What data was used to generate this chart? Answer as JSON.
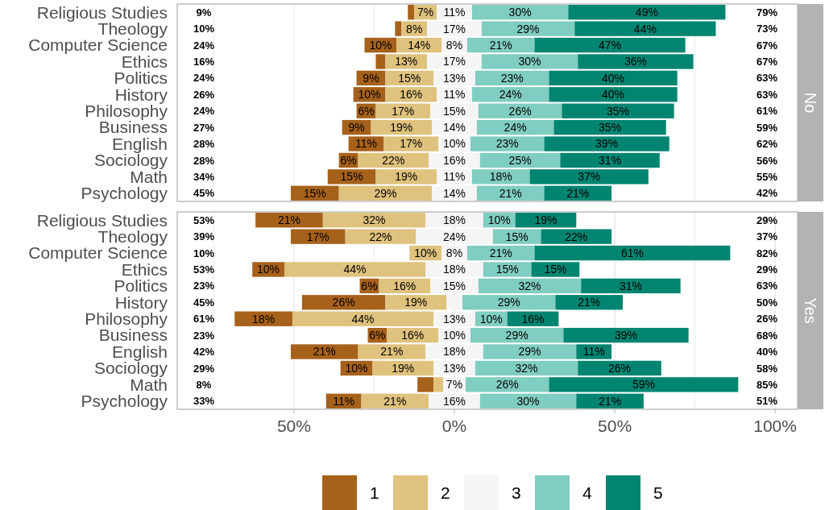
{
  "chart_data": [
    {
      "type": "bar",
      "title": "No",
      "orientation": "horizontal",
      "grid": "x",
      "legend": false,
      "tick_labels": "y",
      "categories": [
        "Religious Studies",
        "Theology",
        "Computer Science",
        "Ethics",
        "Politics",
        "History",
        "Philosophy",
        "Business",
        "English",
        "Sociology",
        "Math",
        "Psychology"
      ],
      "xlim": [
        -86.4,
        107
      ],
      "xticks": [
        {
          "value": -75,
          "label": null
        },
        {
          "value": -50,
          "label": null
        },
        {
          "value": -25,
          "label": null
        },
        {
          "value": 0,
          "label": null
        },
        {
          "value": 25,
          "label": null
        },
        {
          "value": 50,
          "label": null
        },
        {
          "value": 75,
          "label": null
        },
        {
          "value": 100,
          "label": null
        }
      ],
      "series": [
        {
          "color": "#a6611a",
          "values": [
            2,
            2,
            10,
            3,
            9,
            10,
            6,
            9,
            11,
            6,
            15,
            15
          ],
          "base": [
            -14.5,
            -18.5,
            -28,
            -24.5,
            -30.5,
            -31.5,
            -30.5,
            -35,
            -33,
            -36,
            -39.5,
            -51
          ],
          "value_labels": [
            null,
            null,
            "10%",
            null,
            "9%",
            "10%",
            "6%",
            "9%",
            "11%",
            "6%",
            "15%",
            "15%"
          ]
        },
        {
          "color": "#dfc27d",
          "values": [
            7,
            8,
            14,
            13,
            15,
            16,
            17,
            19,
            17,
            22,
            19,
            29
          ],
          "base": [
            -12.5,
            -16.5,
            -18,
            -21.5,
            -21.5,
            -21.5,
            -24.5,
            -26,
            -22,
            -30,
            -24.5,
            -36
          ],
          "value_labels": [
            "7%",
            "8%",
            "14%",
            "13%",
            "15%",
            "16%",
            "17%",
            "19%",
            "17%",
            "22%",
            "19%",
            "29%"
          ]
        },
        {
          "color": "#f5f5f5",
          "values": [
            11,
            17,
            8,
            17,
            13,
            11,
            15,
            14,
            10,
            16,
            11,
            14
          ],
          "base": [
            -5.5,
            -8.5,
            -4,
            -8.5,
            -6.5,
            -5.5,
            -7.5,
            -7,
            -5,
            -8,
            -5.5,
            -7
          ],
          "value_labels": [
            "11%",
            "17%",
            "8%",
            "17%",
            "13%",
            "11%",
            "15%",
            "14%",
            "10%",
            "16%",
            "11%",
            "14%"
          ]
        },
        {
          "color": "#80cdc1",
          "values": [
            30,
            29,
            21,
            30,
            23,
            24,
            26,
            24,
            23,
            25,
            18,
            21
          ],
          "base": [
            5.5,
            8.5,
            4,
            8.5,
            6.5,
            5.5,
            7.5,
            7,
            5,
            8,
            5.5,
            7
          ],
          "value_labels": [
            "30%",
            "29%",
            "21%",
            "30%",
            "23%",
            "24%",
            "26%",
            "24%",
            "23%",
            "25%",
            "18%",
            "21%"
          ]
        },
        {
          "color": "#018571",
          "values": [
            49,
            44,
            47,
            36,
            40,
            40,
            35,
            35,
            39,
            31,
            37,
            21
          ],
          "base": [
            35.5,
            37.5,
            25,
            38.5,
            29.5,
            29.5,
            33.5,
            31,
            28,
            33,
            23.5,
            28
          ],
          "value_labels": [
            "49%",
            "44%",
            "47%",
            "36%",
            "40%",
            "40%",
            "35%",
            "35%",
            "39%",
            "31%",
            "37%",
            "21%"
          ]
        }
      ],
      "annotations": [
        "9%",
        "10%",
        "24%",
        "16%",
        "24%",
        "26%",
        "24%",
        "27%",
        "28%",
        "28%",
        "34%",
        "45%",
        "79%",
        "73%",
        "67%",
        "67%",
        "63%",
        "63%",
        "61%",
        "59%",
        "62%",
        "56%",
        "55%",
        "42%"
      ]
    },
    {
      "type": "bar",
      "title": "Yes",
      "orientation": "horizontal",
      "grid": "x",
      "legend": "bottom",
      "categories": [
        "Religious Studies",
        "Theology",
        "Computer Science",
        "Ethics",
        "Politics",
        "History",
        "Philosophy",
        "Business",
        "English",
        "Sociology",
        "Math",
        "Psychology"
      ],
      "xlim": [
        -86.4,
        107
      ],
      "xticks": [
        {
          "value": -75,
          "label": null
        },
        {
          "value": -50,
          "label": "50%"
        },
        {
          "value": -25,
          "label": null
        },
        {
          "value": 0,
          "label": "0%"
        },
        {
          "value": 25,
          "label": null
        },
        {
          "value": 50,
          "label": "50%"
        },
        {
          "value": 75,
          "label": null
        },
        {
          "value": 100,
          "label": "100%"
        }
      ],
      "series": [
        {
          "name": "1",
          "color": "#a6611a",
          "values": [
            21,
            17,
            null,
            10,
            6,
            26,
            18,
            6,
            21,
            10,
            5,
            11
          ],
          "base": [
            -62,
            -51,
            null,
            -63,
            -29.5,
            -47.5,
            -68.5,
            -27,
            -51,
            -35.5,
            -11.5,
            -40
          ],
          "value_labels": [
            "21%",
            "17%",
            null,
            "10%",
            "6%",
            "26%",
            "18%",
            "6%",
            "21%",
            "10%",
            null,
            "11%"
          ]
        },
        {
          "name": "2",
          "color": "#dfc27d",
          "values": [
            32,
            22,
            10,
            44,
            16,
            19,
            44,
            16,
            21,
            19,
            3,
            21
          ],
          "base": [
            -41,
            -34,
            -14,
            -53,
            -23.5,
            -21.5,
            -50.5,
            -21,
            -30,
            -25.5,
            -6.5,
            -29
          ],
          "value_labels": [
            "32%",
            "22%",
            "10%",
            "44%",
            "16%",
            "19%",
            "44%",
            "16%",
            "21%",
            "19%",
            null,
            "21%"
          ]
        },
        {
          "name": "3",
          "color": "#f5f5f5",
          "values": [
            18,
            24,
            8,
            18,
            15,
            5,
            13,
            10,
            18,
            13,
            7,
            16
          ],
          "base": [
            -9,
            -12,
            -4,
            -9,
            -7.5,
            -2.5,
            -6.5,
            -5,
            -9,
            -6.5,
            -3.5,
            -8
          ],
          "value_labels": [
            "18%",
            "24%",
            "8%",
            "18%",
            "15%",
            null,
            "13%",
            "10%",
            "18%",
            "13%",
            "7%",
            "16%"
          ]
        },
        {
          "name": "4",
          "color": "#80cdc1",
          "values": [
            10,
            15,
            21,
            15,
            32,
            29,
            10,
            29,
            29,
            32,
            26,
            30
          ],
          "base": [
            9,
            12,
            4,
            9,
            7.5,
            2.5,
            6.5,
            5,
            9,
            6.5,
            3.5,
            8
          ],
          "value_labels": [
            "10%",
            "15%",
            "21%",
            "15%",
            "32%",
            "29%",
            "10%",
            "29%",
            "29%",
            "32%",
            "26%",
            "30%"
          ]
        },
        {
          "name": "5",
          "color": "#018571",
          "values": [
            19,
            22,
            61,
            15,
            31,
            21,
            16,
            39,
            11,
            26,
            59,
            21
          ],
          "base": [
            19,
            27,
            25,
            24,
            39.5,
            31.5,
            16.5,
            34,
            38,
            38.5,
            29.5,
            38
          ],
          "value_labels": [
            "19%",
            "22%",
            "61%",
            "15%",
            "31%",
            "21%",
            "16%",
            "39%",
            "11%",
            "26%",
            "59%",
            "21%"
          ]
        }
      ],
      "annotations": [
        "53%",
        "39%",
        "10%",
        "53%",
        "23%",
        "45%",
        "61%",
        "23%",
        "42%",
        "29%",
        "8%",
        "33%",
        "29%",
        "37%",
        "82%",
        "29%",
        "63%",
        "50%",
        "26%",
        "68%",
        "40%",
        "58%",
        "85%",
        "51%"
      ]
    }
  ]
}
